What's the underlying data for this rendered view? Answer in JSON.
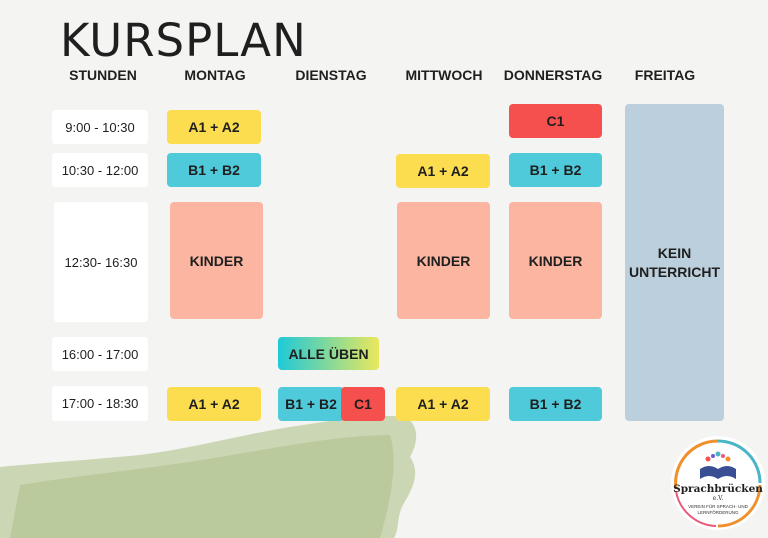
{
  "title": "KURSPLAN",
  "headers": [
    "STUNDEN",
    "MONTAG",
    "DIENSTAG",
    "MITTWOCH",
    "DONNERSTAG",
    "FREITAG"
  ],
  "times": [
    "9:00 - 10:30",
    "10:30 - 12:00",
    "12:30- 16:30",
    "16:00 - 17:00",
    "17:00 - 18:30"
  ],
  "montag": {
    "slot1": "A1 + A2",
    "slot2": "B1 + B2",
    "slot3": "KINDER",
    "slot5": "A1 + A2"
  },
  "dienstag": {
    "slot4": "ALLE ÜBEN",
    "slot5a": "B1 + B2",
    "slot5b": "C1"
  },
  "mittwoch": {
    "slot2": "A1 + A2",
    "slot3": "KINDER",
    "slot5": "A1 + A2"
  },
  "donnerstag": {
    "slot1": "C1",
    "slot2": "B1 + B2",
    "slot3": "KINDER",
    "slot5": "B1 + B2"
  },
  "freitag": {
    "note": "KEIN UNTERRICHT"
  },
  "logo": {
    "name": "Sprachbrücken",
    "suffix": "e.V.",
    "tagline_1": "VEREIN FÜR SPRACH- UND",
    "tagline_2": "LERNFÖRDERUNG"
  },
  "colors": {
    "yellow": "#fbdd4f",
    "blue": "#4ecadb",
    "red": "#f5504e",
    "salmon": "#fbb5a0",
    "grey_blue": "#bccfdc",
    "background": "#f4f4f2"
  }
}
